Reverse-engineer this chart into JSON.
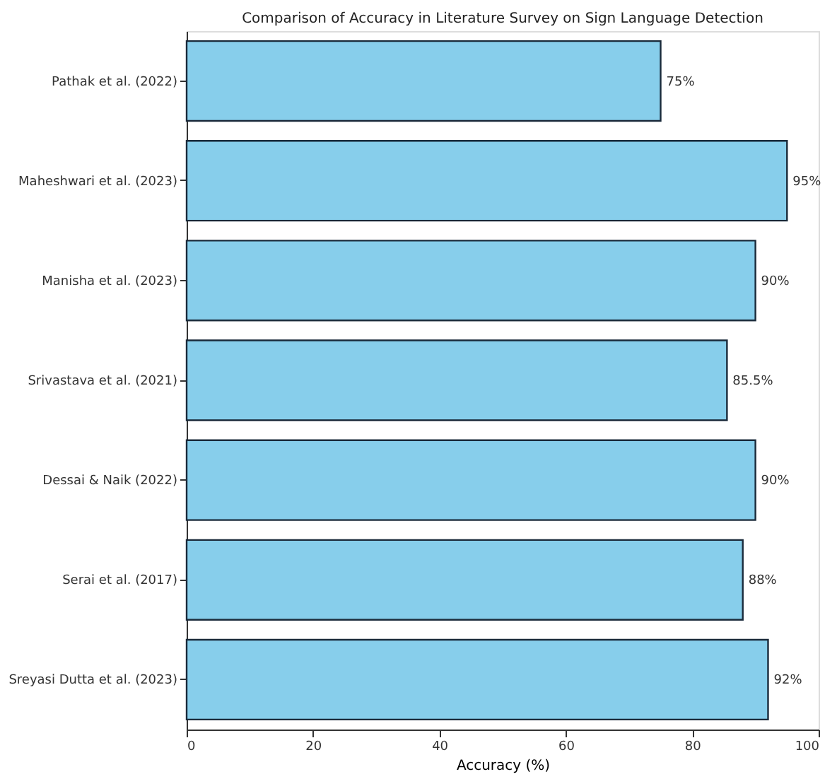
{
  "chart_data": {
    "type": "bar",
    "orientation": "horizontal",
    "title": "Comparison of Accuracy in Literature Survey on Sign Language Detection",
    "xlabel": "Accuracy (%)",
    "categories": [
      "Pathak et al. (2022)",
      "Maheshwari et al. (2023)",
      "Manisha et al. (2023)",
      "Srivastava et al. (2021)",
      "Dessai & Naik (2022)",
      "Serai et al. (2017)",
      "Sreyasi Dutta et al. (2023)"
    ],
    "values": [
      75,
      95,
      90,
      85.5,
      90,
      88,
      92
    ],
    "value_labels": [
      "75%",
      "95%",
      "90%",
      "85.5%",
      "90%",
      "88%",
      "92%"
    ],
    "color": "#87ceeb",
    "xlim": [
      0,
      100
    ],
    "xticks": [
      0,
      20,
      40,
      60,
      80,
      100
    ],
    "grid": false
  }
}
